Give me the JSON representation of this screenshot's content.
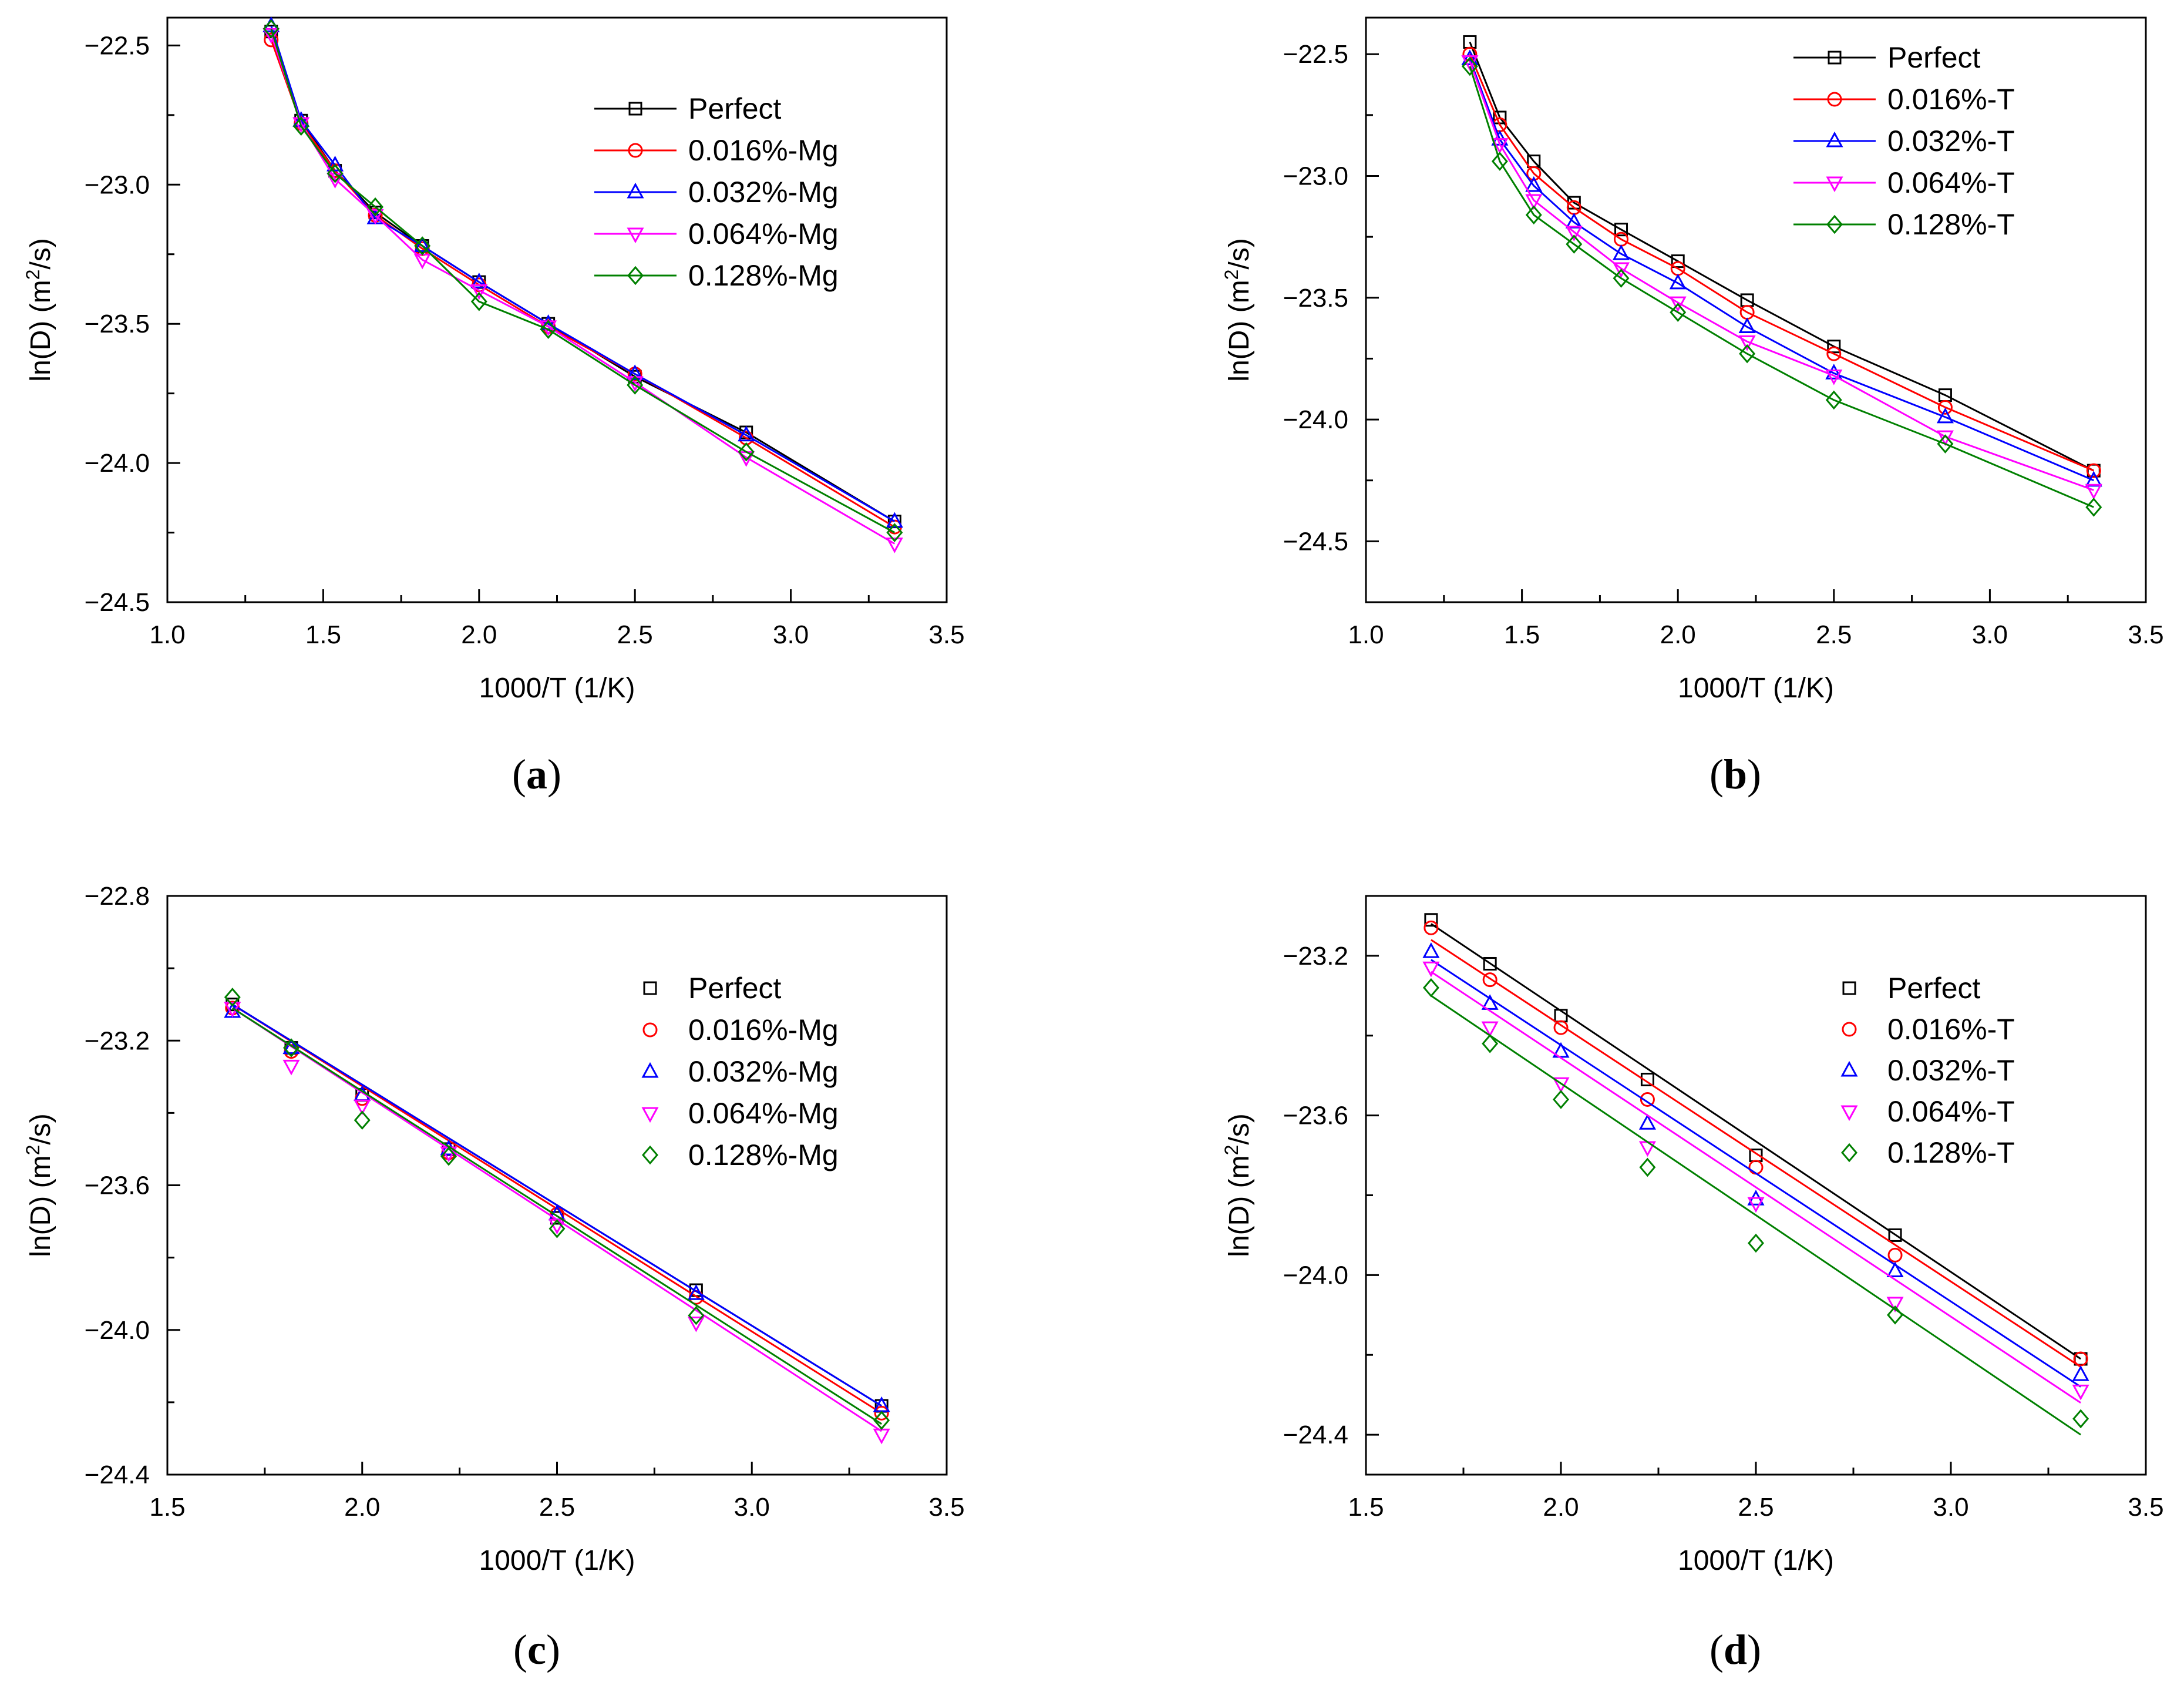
{
  "figure": {
    "background": "#ffffff"
  },
  "series_styles": [
    {
      "color": "#000000",
      "marker": "square"
    },
    {
      "color": "#ff0000",
      "marker": "circle"
    },
    {
      "color": "#0000ff",
      "marker": "triangle-up"
    },
    {
      "color": "#ff00ff",
      "marker": "triangle-down"
    },
    {
      "color": "#008000",
      "marker": "diamond"
    }
  ],
  "chart_data": [
    {
      "panel": "(a)",
      "type": "line",
      "mode": "line-markers",
      "title": "",
      "xlabel": "1000/T (1/K)",
      "ylabel_main": "ln(D) (m",
      "ylabel_sup": "2",
      "ylabel_tail": "/s)",
      "xlim": [
        1.0,
        3.5
      ],
      "ylim": [
        -24.5,
        -22.4
      ],
      "xticks": [
        1.0,
        1.5,
        2.0,
        2.5,
        3.0,
        3.5
      ],
      "xtick_labels": [
        "1.0",
        "1.5",
        "2.0",
        "2.5",
        "3.0",
        "3.5"
      ],
      "yticks": [
        -22.5,
        -23.0,
        -23.5,
        -24.0,
        -24.5
      ],
      "ytick_labels": [
        "−22.5",
        "−23.0",
        "−23.5",
        "−24.0",
        "−24.5"
      ],
      "legend_location": "upper-right",
      "x": [
        1.333,
        1.429,
        1.538,
        1.667,
        1.818,
        2.0,
        2.222,
        2.5,
        2.857,
        3.333
      ],
      "series": [
        {
          "name": "Perfect",
          "values": [
            -22.45,
            -22.77,
            -22.95,
            -23.1,
            -23.22,
            -23.35,
            -23.5,
            -23.69,
            -23.89,
            -24.21
          ]
        },
        {
          "name": "0.016%-Mg",
          "values": [
            -22.48,
            -22.78,
            -22.95,
            -23.11,
            -23.23,
            -23.36,
            -23.51,
            -23.68,
            -23.91,
            -24.23
          ]
        },
        {
          "name": "0.032%-Mg",
          "values": [
            -22.43,
            -22.77,
            -22.93,
            -23.12,
            -23.22,
            -23.35,
            -23.5,
            -23.68,
            -23.9,
            -24.21
          ]
        },
        {
          "name": "0.064%-Mg",
          "values": [
            -22.46,
            -22.78,
            -22.98,
            -23.11,
            -23.27,
            -23.38,
            -23.51,
            -23.71,
            -23.98,
            -24.29
          ]
        },
        {
          "name": "0.128%-Mg",
          "values": [
            -22.44,
            -22.79,
            -22.96,
            -23.08,
            -23.22,
            -23.42,
            -23.52,
            -23.72,
            -23.96,
            -24.25
          ]
        }
      ]
    },
    {
      "panel": "(b)",
      "type": "line",
      "mode": "line-markers",
      "title": "",
      "xlabel": "1000/T (1/K)",
      "ylabel_main": "ln(D) (m",
      "ylabel_sup": "2",
      "ylabel_tail": "/s)",
      "xlim": [
        1.0,
        3.5
      ],
      "ylim": [
        -24.75,
        -22.35
      ],
      "xticks": [
        1.0,
        1.5,
        2.0,
        2.5,
        3.0,
        3.5
      ],
      "xtick_labels": [
        "1.0",
        "1.5",
        "2.0",
        "2.5",
        "3.0",
        "3.5"
      ],
      "yticks": [
        -22.5,
        -23.0,
        -23.5,
        -24.0,
        -24.5
      ],
      "ytick_labels": [
        "−22.5",
        "−23.0",
        "−23.5",
        "−24.0",
        "−24.5"
      ],
      "legend_location": "upper-right",
      "x": [
        1.333,
        1.429,
        1.538,
        1.667,
        1.818,
        2.0,
        2.222,
        2.5,
        2.857,
        3.333
      ],
      "series": [
        {
          "name": "Perfect",
          "values": [
            -22.45,
            -22.76,
            -22.94,
            -23.11,
            -23.22,
            -23.35,
            -23.51,
            -23.7,
            -23.9,
            -24.21
          ]
        },
        {
          "name": "0.016%-T",
          "values": [
            -22.5,
            -22.79,
            -22.99,
            -23.13,
            -23.26,
            -23.38,
            -23.56,
            -23.73,
            -23.95,
            -24.21
          ]
        },
        {
          "name": "0.032%-T",
          "values": [
            -22.52,
            -22.85,
            -23.04,
            -23.19,
            -23.32,
            -23.44,
            -23.62,
            -23.81,
            -23.99,
            -24.25
          ]
        },
        {
          "name": "0.064%-T",
          "values": [
            -22.53,
            -22.87,
            -23.1,
            -23.23,
            -23.38,
            -23.52,
            -23.68,
            -23.82,
            -24.07,
            -24.29
          ]
        },
        {
          "name": "0.128%-T",
          "values": [
            -22.55,
            -22.94,
            -23.16,
            -23.28,
            -23.42,
            -23.56,
            -23.73,
            -23.92,
            -24.1,
            -24.36
          ]
        }
      ]
    },
    {
      "panel": "(c)",
      "type": "scatter",
      "mode": "markers-fit",
      "title": "",
      "xlabel": "1000/T (1/K)",
      "ylabel_main": "ln(D) (m",
      "ylabel_sup": "2",
      "ylabel_tail": "/s)",
      "xlim": [
        1.5,
        3.5
      ],
      "ylim": [
        -24.4,
        -22.8
      ],
      "xticks": [
        1.5,
        2.0,
        2.5,
        3.0,
        3.5
      ],
      "xtick_labels": [
        "1.5",
        "2.0",
        "2.5",
        "3.0",
        "3.5"
      ],
      "yticks": [
        -22.8,
        -23.2,
        -23.6,
        -24.0,
        -24.4
      ],
      "ytick_labels": [
        "−22.8",
        "−23.2",
        "−23.6",
        "−24.0",
        "−24.4"
      ],
      "legend_location": "upper-right",
      "x": [
        1.667,
        1.818,
        2.0,
        2.222,
        2.5,
        2.857,
        3.333
      ],
      "series": [
        {
          "name": "Perfect",
          "values": [
            -23.1,
            -23.22,
            -23.35,
            -23.5,
            -23.69,
            -23.89,
            -24.21
          ],
          "fit": [
            -23.1,
            -24.21
          ]
        },
        {
          "name": "0.016%-Mg",
          "values": [
            -23.11,
            -23.23,
            -23.36,
            -23.51,
            -23.68,
            -23.91,
            -24.23
          ],
          "fit": [
            -23.1,
            -24.23
          ]
        },
        {
          "name": "0.032%-Mg",
          "values": [
            -23.12,
            -23.22,
            -23.35,
            -23.5,
            -23.68,
            -23.9,
            -24.21
          ],
          "fit": [
            -23.1,
            -24.21
          ]
        },
        {
          "name": "0.064%-Mg",
          "values": [
            -23.11,
            -23.27,
            -23.38,
            -23.51,
            -23.71,
            -23.98,
            -24.29
          ],
          "fit": [
            -23.11,
            -24.28
          ]
        },
        {
          "name": "0.128%-Mg",
          "values": [
            -23.08,
            -23.22,
            -23.42,
            -23.52,
            -23.72,
            -23.96,
            -24.25
          ],
          "fit": [
            -23.11,
            -24.26
          ]
        }
      ]
    },
    {
      "panel": "(d)",
      "type": "scatter",
      "mode": "markers-fit",
      "title": "",
      "xlabel": "1000/T (1/K)",
      "ylabel_main": "ln(D) (m",
      "ylabel_sup": "2",
      "ylabel_tail": "/s)",
      "xlim": [
        1.5,
        3.5
      ],
      "ylim": [
        -24.5,
        -23.05
      ],
      "xticks": [
        1.5,
        2.0,
        2.5,
        3.0,
        3.5
      ],
      "xtick_labels": [
        "1.5",
        "2.0",
        "2.5",
        "3.0",
        "3.5"
      ],
      "yticks": [
        -23.2,
        -23.6,
        -24.0,
        -24.4
      ],
      "ytick_labels": [
        "−23.2",
        "−23.6",
        "−24.0",
        "−24.4"
      ],
      "legend_location": "upper-right",
      "x": [
        1.667,
        1.818,
        2.0,
        2.222,
        2.5,
        2.857,
        3.333
      ],
      "series": [
        {
          "name": "Perfect",
          "values": [
            -23.11,
            -23.22,
            -23.35,
            -23.51,
            -23.7,
            -23.9,
            -24.21
          ],
          "fit": [
            -23.12,
            -24.21
          ]
        },
        {
          "name": "0.016%-T",
          "values": [
            -23.13,
            -23.26,
            -23.38,
            -23.56,
            -23.73,
            -23.95,
            -24.21
          ],
          "fit": [
            -23.16,
            -24.23
          ]
        },
        {
          "name": "0.032%-T",
          "values": [
            -23.19,
            -23.32,
            -23.44,
            -23.62,
            -23.81,
            -23.99,
            -24.25
          ],
          "fit": [
            -23.21,
            -24.28
          ]
        },
        {
          "name": "0.064%-T",
          "values": [
            -23.23,
            -23.38,
            -23.52,
            -23.68,
            -23.82,
            -24.07,
            -24.29
          ],
          "fit": [
            -23.24,
            -24.32
          ]
        },
        {
          "name": "0.128%-T",
          "values": [
            -23.28,
            -23.42,
            -23.56,
            -23.73,
            -23.92,
            -24.1,
            -24.36
          ],
          "fit": [
            -23.3,
            -24.4
          ]
        }
      ]
    }
  ]
}
